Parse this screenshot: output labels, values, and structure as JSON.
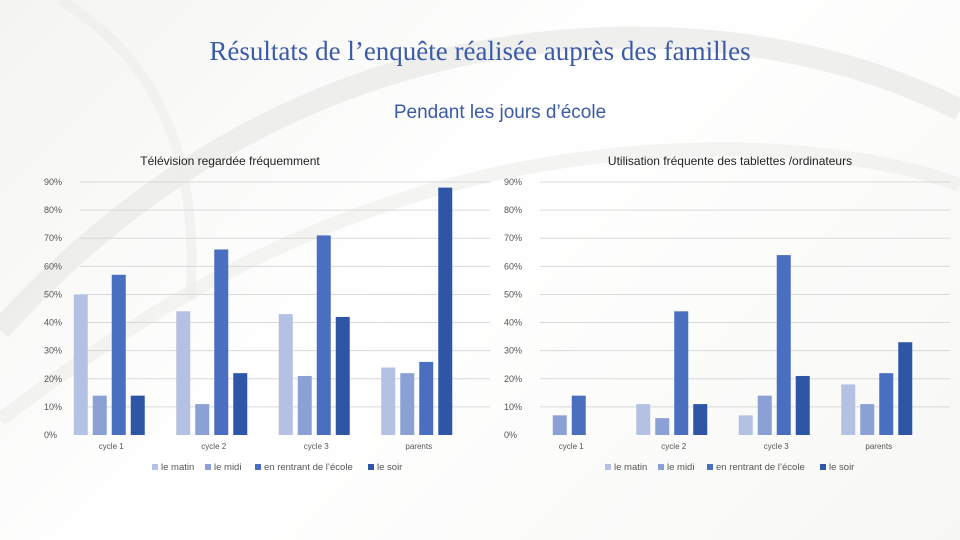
{
  "slide": {
    "title": "Résultats de l’enquête réalisée auprès des familles",
    "subtitle": "Pendant les jours d’école"
  },
  "colors": {
    "title": "#3b5ba8",
    "series": [
      "#b4c1e2",
      "#8ba1d6",
      "#4b6fc0",
      "#2f56a6"
    ]
  },
  "chart_data": [
    {
      "type": "bar",
      "title": "Télévision regardée fréquemment",
      "categories": [
        "cycle 1",
        "cycle 2",
        "cycle 3",
        "parents"
      ],
      "series": [
        {
          "name": "le matin",
          "values": [
            50,
            44,
            43,
            24
          ]
        },
        {
          "name": "le midi",
          "values": [
            14,
            11,
            21,
            22
          ]
        },
        {
          "name": "en rentrant de l’école",
          "values": [
            57,
            66,
            71,
            26
          ]
        },
        {
          "name": "le soir",
          "values": [
            14,
            22,
            42,
            88
          ]
        }
      ],
      "ylim": [
        0,
        90
      ],
      "yticks": [
        "0%",
        "10%",
        "20%",
        "30%",
        "40%",
        "50%",
        "60%",
        "70%",
        "80%",
        "90%"
      ],
      "legend": "bottom",
      "grid": true
    },
    {
      "type": "bar",
      "title": "Utilisation fréquente des tablettes /ordinateurs",
      "categories": [
        "cycle 1",
        "cycle 2",
        "cycle 3",
        "parents"
      ],
      "series": [
        {
          "name": "le matin",
          "values": [
            0,
            11,
            7,
            18
          ]
        },
        {
          "name": "le midi",
          "values": [
            7,
            6,
            14,
            11
          ]
        },
        {
          "name": "en rentrant de l’école",
          "values": [
            14,
            44,
            64,
            22
          ]
        },
        {
          "name": "le soir",
          "values": [
            0,
            11,
            21,
            33
          ]
        }
      ],
      "ylim": [
        0,
        90
      ],
      "yticks": [
        "0%",
        "10%",
        "20%",
        "30%",
        "40%",
        "50%",
        "60%",
        "70%",
        "80%",
        "90%"
      ],
      "legend": "bottom",
      "grid": true
    }
  ]
}
